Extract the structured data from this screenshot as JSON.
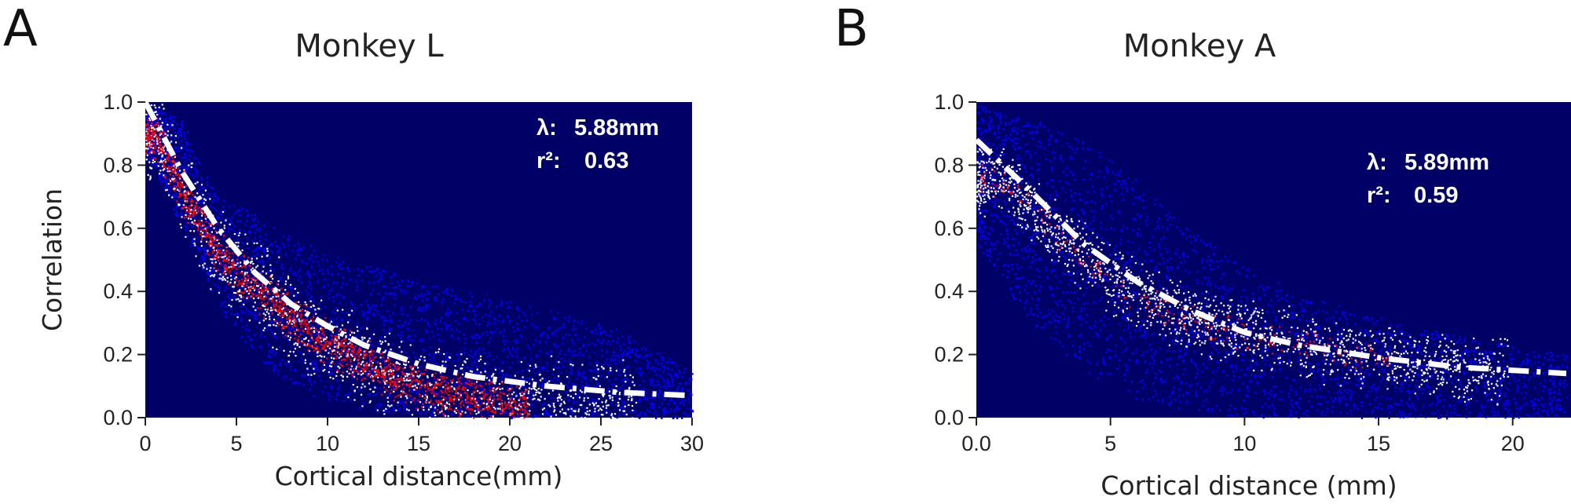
{
  "panels": [
    {
      "letter": "A"
    },
    {
      "letter": "B"
    }
  ],
  "chart_data": [
    {
      "type": "scatter",
      "title": "Monkey L",
      "xlabel": "Cortical distance(mm)",
      "ylabel": "Correlation",
      "xlim": [
        0,
        30
      ],
      "ylim": [
        0,
        1.0
      ],
      "xticks": [
        "0",
        "5",
        "10",
        "15",
        "20",
        "25",
        "30"
      ],
      "yticks": [
        "0.0",
        "0.2",
        "0.4",
        "0.6",
        "0.8",
        "1.0"
      ],
      "annotations": [
        {
          "symbol": "λ:",
          "value": "5.88mm"
        },
        {
          "symbol": "r²:",
          "value": "0.63"
        }
      ],
      "background_color": "#000066",
      "density_colors": [
        "#0000ff",
        "#ffffff",
        "#ff0000"
      ],
      "fit": {
        "type": "exponential",
        "lambda_mm": 5.88,
        "r2": 0.63,
        "style": "dash-dot",
        "color": "#ffffff",
        "points": [
          [
            0,
            1.0
          ],
          [
            2,
            0.78
          ],
          [
            4,
            0.6
          ],
          [
            6,
            0.46
          ],
          [
            8,
            0.36
          ],
          [
            10,
            0.29
          ],
          [
            12,
            0.23
          ],
          [
            15,
            0.17
          ],
          [
            18,
            0.13
          ],
          [
            22,
            0.1
          ],
          [
            26,
            0.08
          ],
          [
            30,
            0.07
          ]
        ]
      },
      "cloud": {
        "upper": [
          [
            0,
            1.0
          ],
          [
            2,
            0.95
          ],
          [
            3,
            0.8
          ],
          [
            4,
            0.7
          ],
          [
            6,
            0.65
          ],
          [
            8,
            0.58
          ],
          [
            10,
            0.52
          ],
          [
            13,
            0.47
          ],
          [
            16,
            0.42
          ],
          [
            20,
            0.37
          ],
          [
            23,
            0.33
          ],
          [
            26,
            0.28
          ],
          [
            30,
            0.15
          ]
        ],
        "lower": [
          [
            0,
            0.85
          ],
          [
            2,
            0.6
          ],
          [
            4,
            0.35
          ],
          [
            6,
            0.2
          ],
          [
            8,
            0.1
          ],
          [
            10,
            0.05
          ],
          [
            13,
            0.02
          ],
          [
            16,
            0.01
          ],
          [
            20,
            0.0
          ],
          [
            30,
            0.0
          ]
        ],
        "core": [
          [
            0.5,
            0.9
          ],
          [
            2,
            0.72
          ],
          [
            4,
            0.52
          ],
          [
            6,
            0.42
          ],
          [
            8,
            0.32
          ],
          [
            10,
            0.24
          ],
          [
            12,
            0.18
          ],
          [
            14,
            0.12
          ],
          [
            17,
            0.07
          ],
          [
            20,
            0.04
          ]
        ],
        "core_spread": 0.08
      }
    },
    {
      "type": "scatter",
      "title": "Monkey A",
      "xlabel": "Cortical distance (mm)",
      "ylabel": "",
      "xlim": [
        0,
        22
      ],
      "ylim": [
        0,
        1.0
      ],
      "xticks": [
        "0.0",
        "5",
        "10",
        "15",
        "20"
      ],
      "yticks": [
        "0.0",
        "0.2",
        "0.4",
        "0.6",
        "0.8",
        "1.0"
      ],
      "annotations": [
        {
          "symbol": "λ:",
          "value": "5.89mm"
        },
        {
          "symbol": "r²:",
          "value": "0.59"
        }
      ],
      "background_color": "#000066",
      "density_colors": [
        "#0000ff",
        "#ffffff",
        "#ff0000"
      ],
      "fit": {
        "type": "exponential",
        "lambda_mm": 5.89,
        "r2": 0.59,
        "style": "dash-dot",
        "color": "#ffffff",
        "points": [
          [
            0,
            0.88
          ],
          [
            2,
            0.72
          ],
          [
            4,
            0.55
          ],
          [
            6,
            0.43
          ],
          [
            8,
            0.34
          ],
          [
            10,
            0.27
          ],
          [
            12,
            0.23
          ],
          [
            15,
            0.19
          ],
          [
            18,
            0.16
          ],
          [
            22,
            0.14
          ]
        ]
      },
      "cloud": {
        "upper": [
          [
            0,
            1.0
          ],
          [
            2,
            0.95
          ],
          [
            4,
            0.88
          ],
          [
            6,
            0.75
          ],
          [
            8,
            0.6
          ],
          [
            10,
            0.48
          ],
          [
            12,
            0.4
          ],
          [
            15,
            0.32
          ],
          [
            18,
            0.26
          ],
          [
            22,
            0.2
          ]
        ],
        "lower": [
          [
            0,
            0.55
          ],
          [
            2,
            0.3
          ],
          [
            4,
            0.15
          ],
          [
            6,
            0.06
          ],
          [
            8,
            0.02
          ],
          [
            10,
            0.0
          ],
          [
            22,
            0.0
          ]
        ],
        "core": [
          [
            1,
            0.75
          ],
          [
            3,
            0.58
          ],
          [
            5,
            0.44
          ],
          [
            7,
            0.35
          ],
          [
            9,
            0.29
          ],
          [
            11,
            0.25
          ],
          [
            13,
            0.22
          ],
          [
            16,
            0.18
          ],
          [
            19,
            0.15
          ]
        ],
        "core_spread": 0.06
      }
    }
  ]
}
